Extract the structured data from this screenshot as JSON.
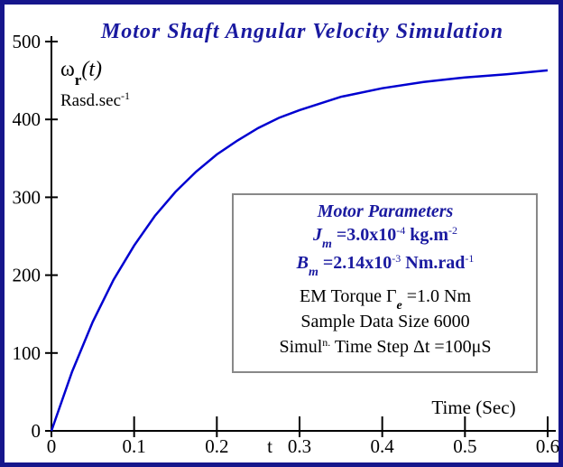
{
  "chart_data": {
    "type": "line",
    "title": "Motor Shaft Angular Velocity Simulation",
    "y_label": [
      {
        "text": "ω",
        "style": "n"
      },
      {
        "text": "r",
        "style": "sub"
      },
      {
        "text": "(t)",
        "style": "i"
      }
    ],
    "y_units": [
      {
        "text": "Rasd.sec",
        "style": "n"
      },
      {
        "text": "-1",
        "style": "sup"
      }
    ],
    "x_label": "Time (Sec)",
    "x_symbol": "t",
    "x": [
      0,
      0.025,
      0.05,
      0.075,
      0.1,
      0.125,
      0.15,
      0.175,
      0.2,
      0.225,
      0.25,
      0.275,
      0.3,
      0.35,
      0.4,
      0.45,
      0.5,
      0.55,
      0.6
    ],
    "series": [
      {
        "color": "#0000d0",
        "values": [
          0,
          76,
          140,
          194,
          238,
          276,
          307,
          333,
          355,
          373,
          389,
          402,
          412,
          429,
          440,
          448,
          454,
          458,
          463
        ]
      }
    ],
    "xlim": [
      0,
      0.6
    ],
    "xticks": [
      0,
      0.1,
      0.2,
      0.3,
      0.4,
      0.5,
      0.6
    ],
    "ylim": [
      0,
      500
    ],
    "yticks": [
      0,
      100,
      200,
      300,
      400,
      500
    ],
    "annotation_box": [
      {
        "color": "#1a1aa0",
        "segments": [
          {
            "text": "Motor Parameters",
            "style": "bi"
          }
        ]
      },
      {
        "color": "#1a1aa0",
        "segments": [
          {
            "text": "J",
            "style": "bi"
          },
          {
            "text": "m",
            "style": "subbi"
          },
          {
            "text": " =3.0x10",
            "style": "b"
          },
          {
            "text": "-4",
            "style": "sup"
          },
          {
            "text": " kg.m",
            "style": "b"
          },
          {
            "text": "-2",
            "style": "sup"
          }
        ]
      },
      {
        "color": "#1a1aa0",
        "segments": [
          {
            "text": "B",
            "style": "bi"
          },
          {
            "text": "m",
            "style": "subbi"
          },
          {
            "text": " =2.14x10",
            "style": "b"
          },
          {
            "text": "-3",
            "style": "sup"
          },
          {
            "text": " Nm.rad",
            "style": "b"
          },
          {
            "text": "-1",
            "style": "sup"
          }
        ]
      },
      {
        "color": "#000000",
        "segments": [
          {
            "text": "EM Torque Γ",
            "style": "n"
          },
          {
            "text": "e",
            "style": "subi"
          },
          {
            "text": " =1.0 Nm",
            "style": "n"
          }
        ]
      },
      {
        "color": "#000000",
        "segments": [
          {
            "text": "Sample Data Size 6000",
            "style": "n"
          }
        ]
      },
      {
        "color": "#000000",
        "segments": [
          {
            "text": "Simul",
            "style": "n"
          },
          {
            "text": "n.",
            "style": "sup"
          },
          {
            "text": " Time Step Δt =100μS",
            "style": "n"
          }
        ]
      }
    ]
  }
}
